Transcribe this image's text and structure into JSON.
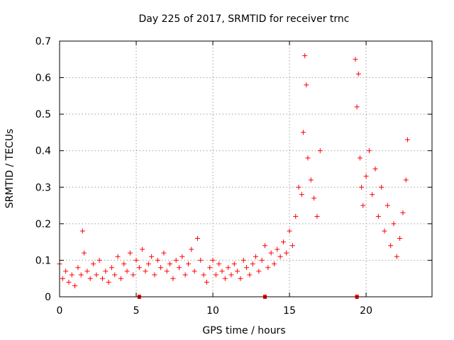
{
  "chart_data": {
    "type": "scatter",
    "title": "Day 225 of 2017, SRMTID for receiver trnc",
    "xlabel": "GPS time / hours",
    "ylabel": "SRMTID / TECUs",
    "xlim": [
      0,
      24.3
    ],
    "ylim": [
      0,
      0.7
    ],
    "x_ticks": [
      0,
      5,
      10,
      15,
      20
    ],
    "x_tick_labels": [
      "0",
      "5",
      "10",
      "15",
      "20"
    ],
    "y_ticks": [
      0,
      0.1,
      0.2,
      0.3,
      0.4,
      0.5,
      0.6,
      0.7
    ],
    "y_tick_labels": [
      "0",
      "0.1",
      "0.2",
      "0.3",
      "0.4",
      "0.5",
      "0.6",
      "0.7"
    ],
    "grid": true,
    "marker": "+",
    "color": "#ff0000",
    "gap_markers_x": [
      5.2,
      13.4,
      19.4
    ],
    "series": [
      {
        "name": "SRMTID",
        "x": [
          0.0,
          0.2,
          0.4,
          0.6,
          0.8,
          1.0,
          1.2,
          1.4,
          1.5,
          1.6,
          1.8,
          2.0,
          2.2,
          2.4,
          2.6,
          2.8,
          3.0,
          3.2,
          3.4,
          3.6,
          3.8,
          4.0,
          4.2,
          4.4,
          4.6,
          4.8,
          5.0,
          5.2,
          5.4,
          5.6,
          5.8,
          6.0,
          6.2,
          6.4,
          6.6,
          6.8,
          7.0,
          7.2,
          7.4,
          7.6,
          7.8,
          8.0,
          8.2,
          8.4,
          8.6,
          8.8,
          9.0,
          9.2,
          9.4,
          9.6,
          9.8,
          10.0,
          10.2,
          10.4,
          10.6,
          10.8,
          11.0,
          11.2,
          11.4,
          11.6,
          11.8,
          12.0,
          12.2,
          12.4,
          12.6,
          12.8,
          13.0,
          13.2,
          13.4,
          13.6,
          13.8,
          14.0,
          14.2,
          14.4,
          14.6,
          14.8,
          15.0,
          15.2,
          15.4,
          15.6,
          15.8,
          15.9,
          16.0,
          16.1,
          16.2,
          16.4,
          16.6,
          16.8,
          17.0,
          19.3,
          19.4,
          19.5,
          19.6,
          19.7,
          19.8,
          20.0,
          20.2,
          20.4,
          20.6,
          20.8,
          21.0,
          21.2,
          21.4,
          21.6,
          21.8,
          22.0,
          22.2,
          22.4,
          22.6,
          22.7
        ],
        "y": [
          0.09,
          0.05,
          0.07,
          0.04,
          0.06,
          0.03,
          0.08,
          0.06,
          0.18,
          0.12,
          0.07,
          0.05,
          0.09,
          0.06,
          0.1,
          0.05,
          0.07,
          0.04,
          0.08,
          0.06,
          0.11,
          0.05,
          0.09,
          0.07,
          0.12,
          0.06,
          0.1,
          0.08,
          0.13,
          0.07,
          0.09,
          0.11,
          0.06,
          0.1,
          0.08,
          0.12,
          0.07,
          0.09,
          0.05,
          0.1,
          0.08,
          0.11,
          0.06,
          0.09,
          0.13,
          0.07,
          0.16,
          0.1,
          0.06,
          0.04,
          0.08,
          0.1,
          0.06,
          0.09,
          0.07,
          0.05,
          0.08,
          0.06,
          0.09,
          0.07,
          0.05,
          0.1,
          0.08,
          0.06,
          0.09,
          0.11,
          0.07,
          0.1,
          0.14,
          0.08,
          0.12,
          0.09,
          0.13,
          0.11,
          0.15,
          0.12,
          0.18,
          0.14,
          0.22,
          0.3,
          0.28,
          0.45,
          0.66,
          0.58,
          0.38,
          0.32,
          0.27,
          0.22,
          0.4,
          0.65,
          0.52,
          0.61,
          0.38,
          0.3,
          0.25,
          0.33,
          0.4,
          0.28,
          0.35,
          0.22,
          0.3,
          0.18,
          0.25,
          0.14,
          0.2,
          0.11,
          0.16,
          0.23,
          0.32,
          0.43
        ]
      }
    ]
  }
}
